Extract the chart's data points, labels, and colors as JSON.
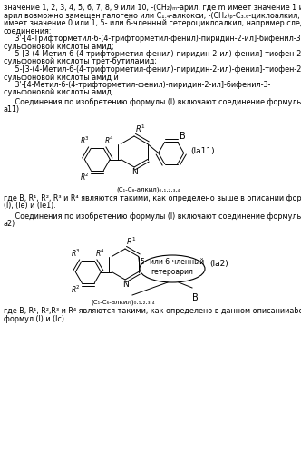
{
  "bg_color": "#ffffff",
  "text_color": "#000000",
  "font_size": 5.8,
  "paragraph1_lines": [
    "значение 1, 2, 3, 4, 5, 6, 7, 8, 9 или 10, -(CH₂)ₘ-арил, где m имеет значение 1 или 2 и",
    "арил возможно замещен галогено или C₁.₄-алкокси, -(CH₂)ₚ-C₃.₆-циклоалкил, где  р",
    "имеет значение 0 или 1, 5- или 6-членный гетероциклоалкил, например следующие",
    "соединения:"
  ],
  "compound1_lines": [
    "     3'-[4-Трифторметил-6-(4-трифторметил-фенил)-пиридин-2-ил]-бифенил-3-",
    "сульфоновой кислоты амид;"
  ],
  "compound2_lines": [
    "     5-[3-(4-Метил-6-(4-трифторметил-фенил)-пиридин-2-ил)-фенил]-тиофен-2-",
    "сульфоновой кислоты трет-бутиламид;"
  ],
  "compound3_lines": [
    "     5-[3-(4-Метил-6-(4-трифторметил-фенил)-пиридин-2-ил)-фенил]-тиофен-2-",
    "сульфоновой кислоты амид и"
  ],
  "compound4_lines": [
    "     3'-[4-Метил-6-(4-трифторметил-фенил)-пиридин-2-ил]-бифенил-3-",
    "сульфоновой кислоты амид."
  ],
  "formula1_intro_lines": [
    "     Соединения по изобретению формулы (I) включают соединение формулы (I-",
    "а11)"
  ],
  "formula1_label": "(Iа11)",
  "formula1_sublabel": "(C₁-C₈-алкил)₀.₁.₂.₃.₄",
  "formula2_intro_lines": [
    "     Соединения по изобретению формулы (I) включают соединение формулы (I-",
    "а2)"
  ],
  "formula2_label": "(Iа2)",
  "formula2_sublabel": "(C₁-C₆-алкил)₀.₁.₂.₃.₄",
  "formula2_bubble": "5- или 6-членный\nгетероарил",
  "footnote1_lines": [
    "где B, R¹, R², R³ и R⁴ являются такими, как определено выше в описании формул",
    "(I), (Iе) и (Iе1)."
  ],
  "footnote2_lines": [
    "где B, R¹, R²,R³ и R⁴ являются такими, как определено в данном описанииabove for",
    "формул (I) и (Ic)."
  ]
}
